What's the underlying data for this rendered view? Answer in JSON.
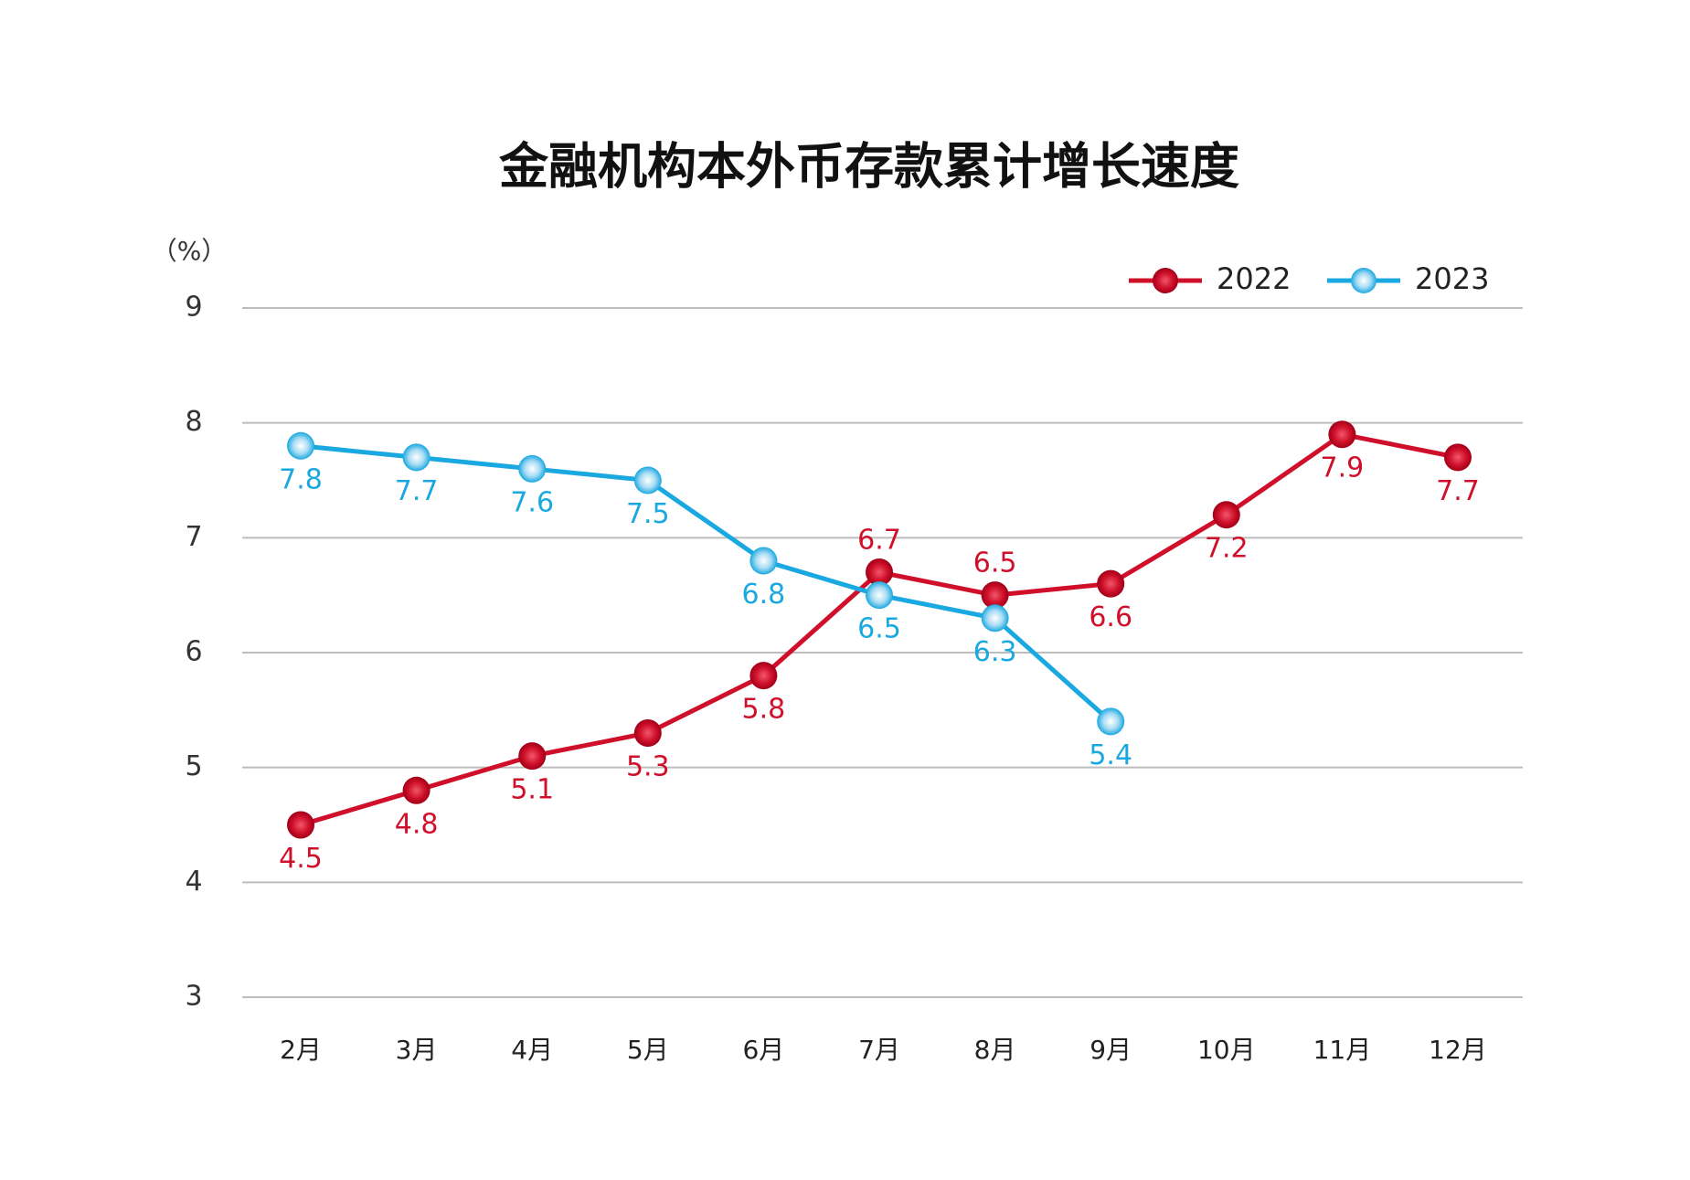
{
  "chart_data": {
    "type": "line",
    "title": "金融机构本外币存款累计增长速度",
    "y_label": "（%）",
    "categories": [
      "2月",
      "3月",
      "4月",
      "5月",
      "6月",
      "7月",
      "8月",
      "9月",
      "10月",
      "11月",
      "12月"
    ],
    "series": [
      {
        "name": "2022",
        "color": "#d0102a",
        "values": [
          4.5,
          4.8,
          5.1,
          5.3,
          5.8,
          6.7,
          6.5,
          6.6,
          7.2,
          7.9,
          7.7
        ]
      },
      {
        "name": "2023",
        "color": "#1aa8e0",
        "values": [
          7.8,
          7.7,
          7.6,
          7.5,
          6.8,
          6.5,
          6.3,
          5.4,
          null,
          null,
          null
        ]
      }
    ],
    "ylim": [
      3,
      9
    ],
    "yticks": [
      3,
      4,
      5,
      6,
      7,
      8,
      9
    ],
    "grid": true,
    "legend": "top-right"
  }
}
